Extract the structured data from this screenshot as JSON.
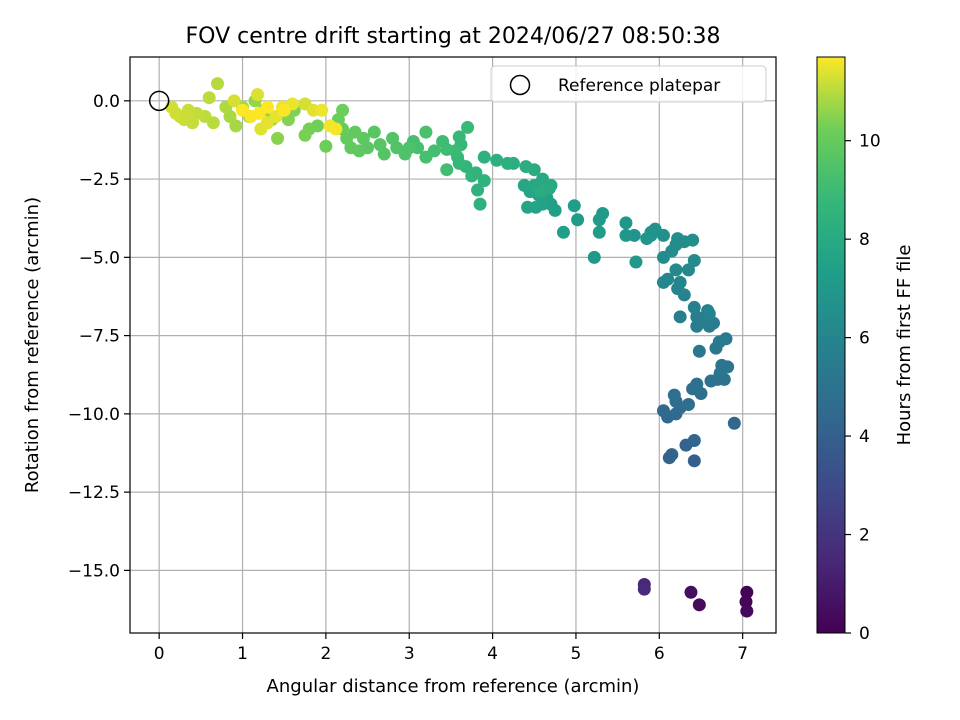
{
  "chart_data": {
    "type": "scatter",
    "title": "FOV centre drift starting at 2024/06/27 08:50:38",
    "xlabel": "Angular distance from reference (arcmin)",
    "ylabel": "Rotation from reference (arcmin)",
    "xlim": [
      -0.35,
      7.4
    ],
    "ylim": [
      -17.0,
      1.4
    ],
    "x_ticks": [
      0,
      1,
      2,
      3,
      4,
      5,
      6,
      7
    ],
    "y_ticks": [
      0.0,
      -2.5,
      -5.0,
      -7.5,
      -10.0,
      -12.5,
      -15.0
    ],
    "x_tick_labels": [
      "0",
      "1",
      "2",
      "3",
      "4",
      "5",
      "6",
      "7"
    ],
    "y_tick_labels": [
      "0.0",
      "−2.5",
      "−5.0",
      "−7.5",
      "−10.0",
      "−12.5",
      "−15.0"
    ],
    "grid": true,
    "legend": {
      "placement": "top-right",
      "entries": [
        {
          "label": "Reference platepar",
          "marker": "open-circle"
        }
      ]
    },
    "reference_point": {
      "x": 0,
      "y": 0
    },
    "colorbar": {
      "label": "Hours from first FF file",
      "colormap": "viridis",
      "range": [
        0,
        11.7
      ],
      "ticks": [
        0,
        2,
        4,
        6,
        8,
        10
      ],
      "tick_labels": [
        "0",
        "2",
        "4",
        "6",
        "8",
        "10"
      ]
    },
    "points": [
      [
        7.05,
        -15.7,
        0.1
      ],
      [
        7.04,
        -16.0,
        0.2
      ],
      [
        7.05,
        -16.3,
        0.3
      ],
      [
        6.48,
        -16.1,
        0.4
      ],
      [
        6.38,
        -15.7,
        0.5
      ],
      [
        5.82,
        -15.45,
        1.5
      ],
      [
        5.82,
        -15.6,
        1.6
      ],
      [
        6.42,
        -11.5,
        4.0
      ],
      [
        6.12,
        -11.4,
        4.1
      ],
      [
        6.15,
        -11.3,
        4.15
      ],
      [
        6.32,
        -11.0,
        4.2
      ],
      [
        6.42,
        -10.85,
        4.3
      ],
      [
        6.9,
        -10.3,
        4.4
      ],
      [
        6.1,
        -10.1,
        4.45
      ],
      [
        6.2,
        -10.0,
        4.5
      ],
      [
        6.05,
        -9.9,
        4.55
      ],
      [
        6.25,
        -9.8,
        4.6
      ],
      [
        6.2,
        -9.6,
        4.65
      ],
      [
        6.35,
        -9.7,
        4.7
      ],
      [
        6.18,
        -9.4,
        4.75
      ],
      [
        6.5,
        -9.35,
        4.8
      ],
      [
        6.4,
        -9.2,
        4.85
      ],
      [
        6.45,
        -9.05,
        4.9
      ],
      [
        6.62,
        -8.95,
        4.95
      ],
      [
        6.7,
        -8.9,
        5.0
      ],
      [
        6.78,
        -8.9,
        5.05
      ],
      [
        6.73,
        -8.7,
        5.1
      ],
      [
        6.75,
        -8.45,
        5.15
      ],
      [
        6.82,
        -8.5,
        5.2
      ],
      [
        6.68,
        -7.9,
        5.25
      ],
      [
        6.48,
        -8.0,
        5.3
      ],
      [
        6.72,
        -7.7,
        5.35
      ],
      [
        6.8,
        -7.6,
        5.4
      ],
      [
        6.6,
        -7.2,
        5.45
      ],
      [
        6.65,
        -7.1,
        5.5
      ],
      [
        6.45,
        -7.2,
        5.55
      ],
      [
        6.55,
        -7.0,
        5.6
      ],
      [
        6.45,
        -6.9,
        5.65
      ],
      [
        6.25,
        -6.9,
        5.7
      ],
      [
        6.42,
        -6.6,
        5.75
      ],
      [
        6.58,
        -6.7,
        5.8
      ],
      [
        6.6,
        -6.8,
        5.85
      ],
      [
        6.3,
        -6.2,
        5.9
      ],
      [
        6.22,
        -6.0,
        5.95
      ],
      [
        6.25,
        -5.8,
        6.0
      ],
      [
        6.05,
        -5.8,
        6.05
      ],
      [
        6.1,
        -5.7,
        6.1
      ],
      [
        6.2,
        -5.4,
        6.15
      ],
      [
        6.35,
        -5.4,
        6.2
      ],
      [
        6.42,
        -5.1,
        6.25
      ],
      [
        6.05,
        -5.0,
        6.3
      ],
      [
        6.15,
        -4.8,
        6.35
      ],
      [
        6.2,
        -4.6,
        6.4
      ],
      [
        6.3,
        -4.5,
        6.45
      ],
      [
        6.4,
        -4.45,
        6.5
      ],
      [
        6.22,
        -4.4,
        6.55
      ],
      [
        6.05,
        -4.3,
        6.6
      ],
      [
        5.9,
        -4.3,
        6.65
      ],
      [
        5.95,
        -4.1,
        6.7
      ],
      [
        5.9,
        -4.2,
        6.75
      ],
      [
        5.85,
        -4.4,
        6.8
      ],
      [
        5.7,
        -4.3,
        6.85
      ],
      [
        5.6,
        -4.3,
        6.9
      ],
      [
        5.6,
        -3.9,
        6.95
      ],
      [
        5.72,
        -5.15,
        7.0
      ],
      [
        5.22,
        -5.0,
        7.05
      ],
      [
        5.28,
        -3.8,
        7.1
      ],
      [
        5.32,
        -3.6,
        7.15
      ],
      [
        5.28,
        -4.2,
        7.2
      ],
      [
        5.02,
        -3.8,
        7.25
      ],
      [
        4.98,
        -3.35,
        7.3
      ],
      [
        4.85,
        -4.2,
        7.35
      ],
      [
        4.75,
        -3.5,
        7.4
      ],
      [
        4.7,
        -3.3,
        7.45
      ],
      [
        4.65,
        -3.1,
        7.5
      ],
      [
        4.6,
        -3.3,
        7.55
      ],
      [
        4.55,
        -3.0,
        7.6
      ],
      [
        4.52,
        -3.4,
        7.65
      ],
      [
        4.45,
        -2.9,
        7.7
      ],
      [
        4.42,
        -3.4,
        7.75
      ],
      [
        4.38,
        -2.7,
        7.8
      ],
      [
        4.5,
        -2.7,
        7.85
      ],
      [
        4.6,
        -2.5,
        7.9
      ],
      [
        4.7,
        -2.7,
        7.95
      ],
      [
        4.68,
        -2.8,
        8.0
      ],
      [
        4.58,
        -2.9,
        8.05
      ],
      [
        4.5,
        -2.2,
        8.1
      ],
      [
        4.4,
        -2.1,
        8.15
      ],
      [
        4.25,
        -2.0,
        8.2
      ],
      [
        4.18,
        -2.0,
        8.25
      ],
      [
        4.05,
        -1.9,
        8.3
      ],
      [
        3.9,
        -1.8,
        8.35
      ],
      [
        3.85,
        -3.3,
        8.4
      ],
      [
        3.82,
        -2.85,
        8.45
      ],
      [
        3.9,
        -2.55,
        8.5
      ],
      [
        3.8,
        -2.3,
        8.55
      ],
      [
        3.75,
        -2.4,
        8.6
      ],
      [
        3.68,
        -2.1,
        8.65
      ],
      [
        3.6,
        -2.0,
        8.7
      ],
      [
        3.58,
        -1.8,
        8.75
      ],
      [
        3.62,
        -1.4,
        8.8
      ],
      [
        3.6,
        -1.15,
        8.85
      ],
      [
        3.7,
        -0.85,
        8.9
      ],
      [
        3.55,
        -1.6,
        8.95
      ],
      [
        3.45,
        -1.55,
        9.0
      ],
      [
        3.4,
        -1.3,
        9.05
      ],
      [
        3.45,
        -2.2,
        9.1
      ],
      [
        3.3,
        -1.6,
        9.15
      ],
      [
        3.2,
        -1.8,
        9.2
      ],
      [
        3.1,
        -1.5,
        9.25
      ],
      [
        3.05,
        -1.3,
        9.3
      ],
      [
        3.2,
        -1.0,
        9.35
      ],
      [
        3.0,
        -1.5,
        9.4
      ],
      [
        2.95,
        -1.7,
        9.45
      ],
      [
        2.85,
        -1.5,
        9.5
      ],
      [
        2.8,
        -1.2,
        9.55
      ],
      [
        2.7,
        -1.7,
        9.6
      ],
      [
        2.65,
        -1.4,
        9.65
      ],
      [
        2.58,
        -1.0,
        9.7
      ],
      [
        2.5,
        -1.5,
        9.75
      ],
      [
        2.45,
        -1.2,
        9.8
      ],
      [
        2.4,
        -1.6,
        9.85
      ],
      [
        2.35,
        -1.0,
        9.9
      ],
      [
        2.3,
        -1.5,
        9.95
      ],
      [
        2.25,
        -1.2,
        10.0
      ],
      [
        2.2,
        -0.9,
        10.05
      ],
      [
        2.15,
        -0.6,
        10.1
      ],
      [
        2.2,
        -0.3,
        10.15
      ],
      [
        2.0,
        -1.45,
        10.2
      ],
      [
        1.9,
        -0.8,
        10.25
      ],
      [
        1.8,
        -0.9,
        10.3
      ],
      [
        1.75,
        -1.1,
        10.35
      ],
      [
        1.62,
        -0.3,
        10.4
      ],
      [
        1.55,
        -0.6,
        10.45
      ],
      [
        1.42,
        -1.2,
        10.5
      ],
      [
        1.35,
        -0.6,
        10.55
      ],
      [
        1.25,
        -0.3,
        10.6
      ],
      [
        1.15,
        0.0,
        10.65
      ],
      [
        1.08,
        -0.5,
        10.7
      ],
      [
        1.0,
        -0.2,
        10.75
      ],
      [
        0.92,
        -0.8,
        10.8
      ],
      [
        0.85,
        -0.5,
        10.85
      ],
      [
        0.8,
        -0.2,
        10.9
      ],
      [
        0.7,
        0.55,
        10.95
      ],
      [
        0.65,
        -0.7,
        11.0
      ],
      [
        0.6,
        0.1,
        11.02
      ],
      [
        0.55,
        -0.5,
        11.05
      ],
      [
        0.45,
        -0.4,
        11.1
      ],
      [
        0.4,
        -0.7,
        11.12
      ],
      [
        0.35,
        -0.3,
        11.15
      ],
      [
        0.3,
        -0.6,
        11.18
      ],
      [
        0.25,
        -0.5,
        11.2
      ],
      [
        0.2,
        -0.4,
        11.22
      ],
      [
        0.15,
        -0.2,
        11.25
      ],
      [
        0.9,
        0.0,
        11.3
      ],
      [
        1.18,
        0.2,
        11.35
      ],
      [
        1.22,
        -0.9,
        11.38
      ],
      [
        1.3,
        -0.7,
        11.42
      ],
      [
        1.4,
        -0.5,
        11.45
      ],
      [
        1.48,
        -0.2,
        11.5
      ],
      [
        1.95,
        -0.3,
        11.55
      ],
      [
        2.05,
        -0.8,
        11.58
      ],
      [
        2.12,
        -0.9,
        11.62
      ],
      [
        1.1,
        -0.5,
        11.65
      ],
      [
        1.0,
        -0.3,
        11.68
      ],
      [
        1.2,
        -0.4,
        11.7
      ],
      [
        1.3,
        -0.2,
        11.7
      ],
      [
        1.5,
        -0.3,
        11.7
      ],
      [
        1.6,
        -0.1,
        11.5
      ],
      [
        1.75,
        -0.1,
        11.3
      ],
      [
        1.85,
        -0.3,
        11.4
      ]
    ]
  }
}
